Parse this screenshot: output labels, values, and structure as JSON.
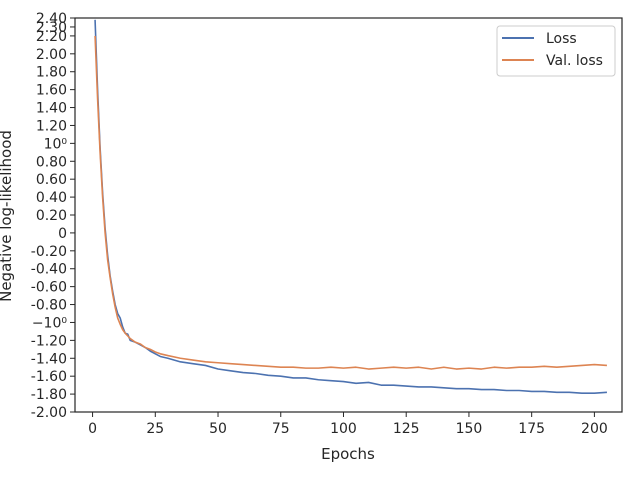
{
  "chart_data": {
    "type": "line",
    "title": "",
    "xlabel": "Epochs",
    "ylabel": "Negative log-likelihood",
    "xlim": [
      -7,
      211
    ],
    "ylim": [
      -2.0,
      2.4
    ],
    "x_ticks": [
      0,
      25,
      50,
      75,
      100,
      125,
      150,
      175,
      200
    ],
    "y_ticks": [
      {
        "value": 2.4,
        "label": "2.40"
      },
      {
        "value": 2.3,
        "label": "2.30"
      },
      {
        "value": 2.2,
        "label": "2.20"
      },
      {
        "value": 2.0,
        "label": "2.00"
      },
      {
        "value": 1.8,
        "label": "1.80"
      },
      {
        "value": 1.6,
        "label": "1.60"
      },
      {
        "value": 1.4,
        "label": "1.40"
      },
      {
        "value": 1.2,
        "label": "1.20"
      },
      {
        "value": 1.0,
        "label": "10⁰"
      },
      {
        "value": 0.8,
        "label": "0.80"
      },
      {
        "value": 0.6,
        "label": "0.60"
      },
      {
        "value": 0.4,
        "label": "0.40"
      },
      {
        "value": 0.2,
        "label": "0.20"
      },
      {
        "value": 0.0,
        "label": "0"
      },
      {
        "value": -0.2,
        "label": "-0.20"
      },
      {
        "value": -0.4,
        "label": "-0.40"
      },
      {
        "value": -0.6,
        "label": "-0.60"
      },
      {
        "value": -0.8,
        "label": "-0.80"
      },
      {
        "value": -1.0,
        "label": "−10⁰"
      },
      {
        "value": -1.2,
        "label": "-1.20"
      },
      {
        "value": -1.4,
        "label": "-1.40"
      },
      {
        "value": -1.6,
        "label": "-1.60"
      },
      {
        "value": -1.8,
        "label": "-1.80"
      },
      {
        "value": -2.0,
        "label": "-2.00"
      }
    ],
    "legend_position": "top-right",
    "grid": false,
    "series": [
      {
        "name": "Loss",
        "color": "#4c72b0",
        "points": [
          [
            1,
            2.38
          ],
          [
            2,
            1.6
          ],
          [
            3,
            0.95
          ],
          [
            4,
            0.45
          ],
          [
            5,
            0.05
          ],
          [
            6,
            -0.25
          ],
          [
            7,
            -0.48
          ],
          [
            8,
            -0.65
          ],
          [
            9,
            -0.8
          ],
          [
            10,
            -0.9
          ],
          [
            11,
            -0.95
          ],
          [
            12,
            -1.05
          ],
          [
            13,
            -1.12
          ],
          [
            14,
            -1.13
          ],
          [
            15,
            -1.2
          ],
          [
            17,
            -1.22
          ],
          [
            19,
            -1.25
          ],
          [
            21,
            -1.28
          ],
          [
            23,
            -1.32
          ],
          [
            25,
            -1.35
          ],
          [
            27,
            -1.38
          ],
          [
            30,
            -1.4
          ],
          [
            35,
            -1.44
          ],
          [
            40,
            -1.46
          ],
          [
            45,
            -1.48
          ],
          [
            50,
            -1.52
          ],
          [
            55,
            -1.54
          ],
          [
            60,
            -1.56
          ],
          [
            65,
            -1.57
          ],
          [
            70,
            -1.59
          ],
          [
            75,
            -1.6
          ],
          [
            80,
            -1.62
          ],
          [
            85,
            -1.62
          ],
          [
            90,
            -1.64
          ],
          [
            95,
            -1.65
          ],
          [
            100,
            -1.66
          ],
          [
            105,
            -1.68
          ],
          [
            110,
            -1.67
          ],
          [
            115,
            -1.7
          ],
          [
            120,
            -1.7
          ],
          [
            125,
            -1.71
          ],
          [
            130,
            -1.72
          ],
          [
            135,
            -1.72
          ],
          [
            140,
            -1.73
          ],
          [
            145,
            -1.74
          ],
          [
            150,
            -1.74
          ],
          [
            155,
            -1.75
          ],
          [
            160,
            -1.75
          ],
          [
            165,
            -1.76
          ],
          [
            170,
            -1.76
          ],
          [
            175,
            -1.77
          ],
          [
            180,
            -1.77
          ],
          [
            185,
            -1.78
          ],
          [
            190,
            -1.78
          ],
          [
            195,
            -1.79
          ],
          [
            200,
            -1.79
          ],
          [
            205,
            -1.78
          ]
        ]
      },
      {
        "name": "Val. loss",
        "color": "#dd8452",
        "points": [
          [
            1,
            2.2
          ],
          [
            2,
            1.5
          ],
          [
            3,
            0.9
          ],
          [
            4,
            0.4
          ],
          [
            5,
            0.0
          ],
          [
            6,
            -0.3
          ],
          [
            7,
            -0.5
          ],
          [
            8,
            -0.68
          ],
          [
            9,
            -0.83
          ],
          [
            10,
            -0.95
          ],
          [
            11,
            -1.02
          ],
          [
            12,
            -1.08
          ],
          [
            13,
            -1.12
          ],
          [
            14,
            -1.15
          ],
          [
            15,
            -1.18
          ],
          [
            17,
            -1.22
          ],
          [
            19,
            -1.24
          ],
          [
            21,
            -1.28
          ],
          [
            23,
            -1.3
          ],
          [
            25,
            -1.33
          ],
          [
            27,
            -1.35
          ],
          [
            30,
            -1.37
          ],
          [
            35,
            -1.4
          ],
          [
            40,
            -1.42
          ],
          [
            45,
            -1.44
          ],
          [
            50,
            -1.45
          ],
          [
            55,
            -1.46
          ],
          [
            60,
            -1.47
          ],
          [
            65,
            -1.48
          ],
          [
            70,
            -1.49
          ],
          [
            75,
            -1.5
          ],
          [
            80,
            -1.5
          ],
          [
            85,
            -1.51
          ],
          [
            90,
            -1.51
          ],
          [
            95,
            -1.5
          ],
          [
            100,
            -1.51
          ],
          [
            105,
            -1.5
          ],
          [
            110,
            -1.52
          ],
          [
            115,
            -1.51
          ],
          [
            120,
            -1.5
          ],
          [
            125,
            -1.51
          ],
          [
            130,
            -1.5
          ],
          [
            135,
            -1.52
          ],
          [
            140,
            -1.5
          ],
          [
            145,
            -1.52
          ],
          [
            150,
            -1.51
          ],
          [
            155,
            -1.52
          ],
          [
            160,
            -1.5
          ],
          [
            165,
            -1.51
          ],
          [
            170,
            -1.5
          ],
          [
            175,
            -1.5
          ],
          [
            180,
            -1.49
          ],
          [
            185,
            -1.5
          ],
          [
            190,
            -1.49
          ],
          [
            195,
            -1.48
          ],
          [
            200,
            -1.47
          ],
          [
            205,
            -1.48
          ]
        ]
      }
    ]
  }
}
